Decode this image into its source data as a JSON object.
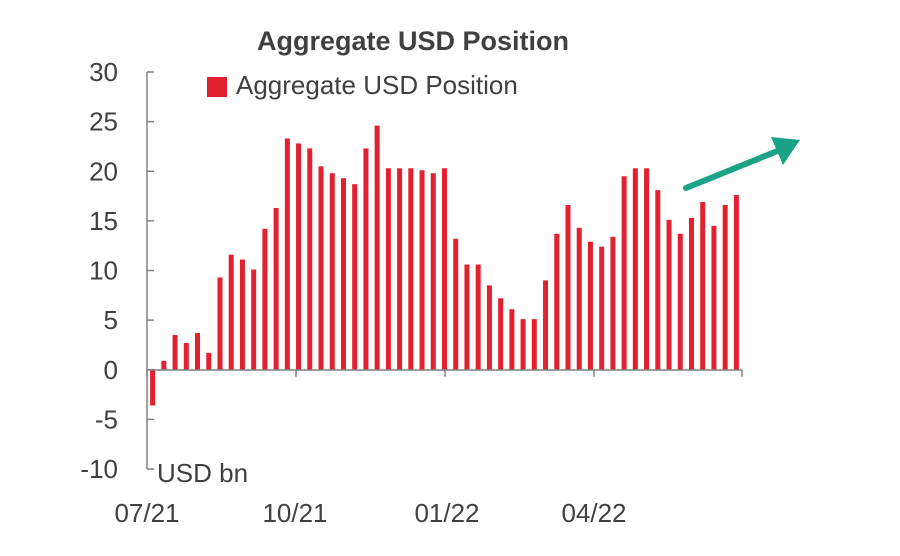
{
  "chart_data": {
    "type": "bar",
    "title": "Aggregate USD Position",
    "unit_label": "USD bn",
    "legend": {
      "entries": [
        "Aggregate USD Position"
      ],
      "placement": "top"
    },
    "ylim": [
      -10,
      30
    ],
    "yticks": [
      -10,
      -5,
      0,
      5,
      10,
      15,
      20,
      25,
      30
    ],
    "xtick_labels": [
      "07/21",
      "10/21",
      "01/22",
      "04/22"
    ],
    "grid": false,
    "colors": {
      "bars": "#e3202f",
      "arrow": "#1aa386",
      "text": "#404040",
      "axis": "#808080"
    },
    "annotations": [
      {
        "type": "arrow",
        "direction": "up-right"
      }
    ],
    "series": [
      {
        "name": "Aggregate USD Position",
        "values": [
          -3.6,
          0.9,
          3.5,
          2.7,
          3.7,
          1.7,
          9.3,
          11.6,
          11.1,
          10.1,
          14.2,
          16.3,
          23.3,
          22.8,
          22.3,
          20.5,
          19.8,
          19.3,
          18.7,
          22.3,
          24.6,
          20.3,
          20.3,
          20.3,
          20.1,
          19.8,
          20.3,
          13.2,
          10.6,
          10.6,
          8.5,
          7.2,
          6.1,
          5.1,
          5.1,
          9.0,
          13.7,
          16.6,
          14.3,
          12.9,
          12.4,
          13.4,
          19.5,
          20.3,
          20.3,
          18.1,
          15.1,
          13.7,
          15.3,
          16.9,
          14.5,
          16.6,
          17.6
        ]
      }
    ]
  }
}
